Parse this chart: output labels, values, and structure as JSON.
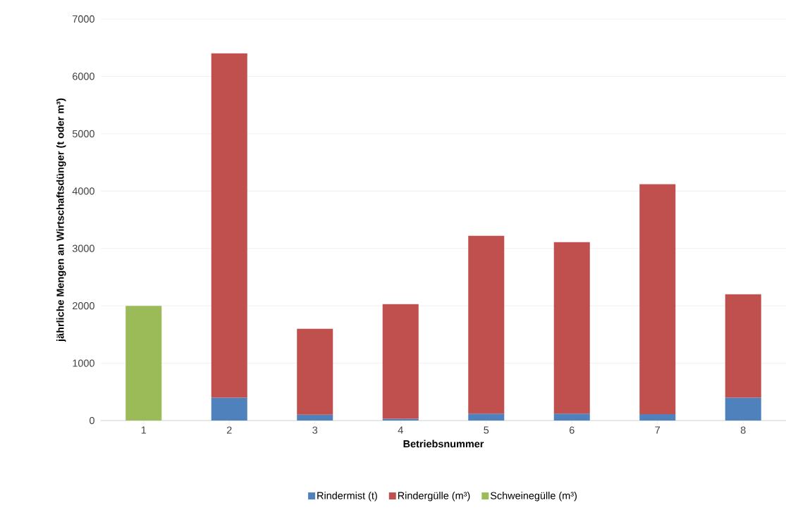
{
  "chart_data": {
    "type": "bar",
    "stacked": true,
    "xlabel": "Betriebsnummer",
    "ylabel": "jährliche Mengen an Wirtschaftsdünger (t oder m³)",
    "categories": [
      "1",
      "2",
      "3",
      "4",
      "5",
      "6",
      "7",
      "8"
    ],
    "series": [
      {
        "name": "Rindermist (t)",
        "color": "#4f81bd",
        "values": [
          null,
          400,
          100,
          30,
          120,
          120,
          110,
          400
        ]
      },
      {
        "name": "Rindergülle (m³)",
        "color": "#c0504d",
        "values": [
          null,
          6000,
          1500,
          2000,
          3100,
          2990,
          4010,
          1800
        ]
      },
      {
        "name": "Schweinegülle (m³)",
        "color": "#9bbb59",
        "values": [
          2000,
          null,
          null,
          null,
          null,
          null,
          null,
          null
        ]
      }
    ],
    "ylim": [
      0,
      7000
    ],
    "yticks": [
      0,
      1000,
      2000,
      3000,
      4000,
      5000,
      6000,
      7000
    ],
    "grid": "y",
    "legend": "bottom"
  }
}
